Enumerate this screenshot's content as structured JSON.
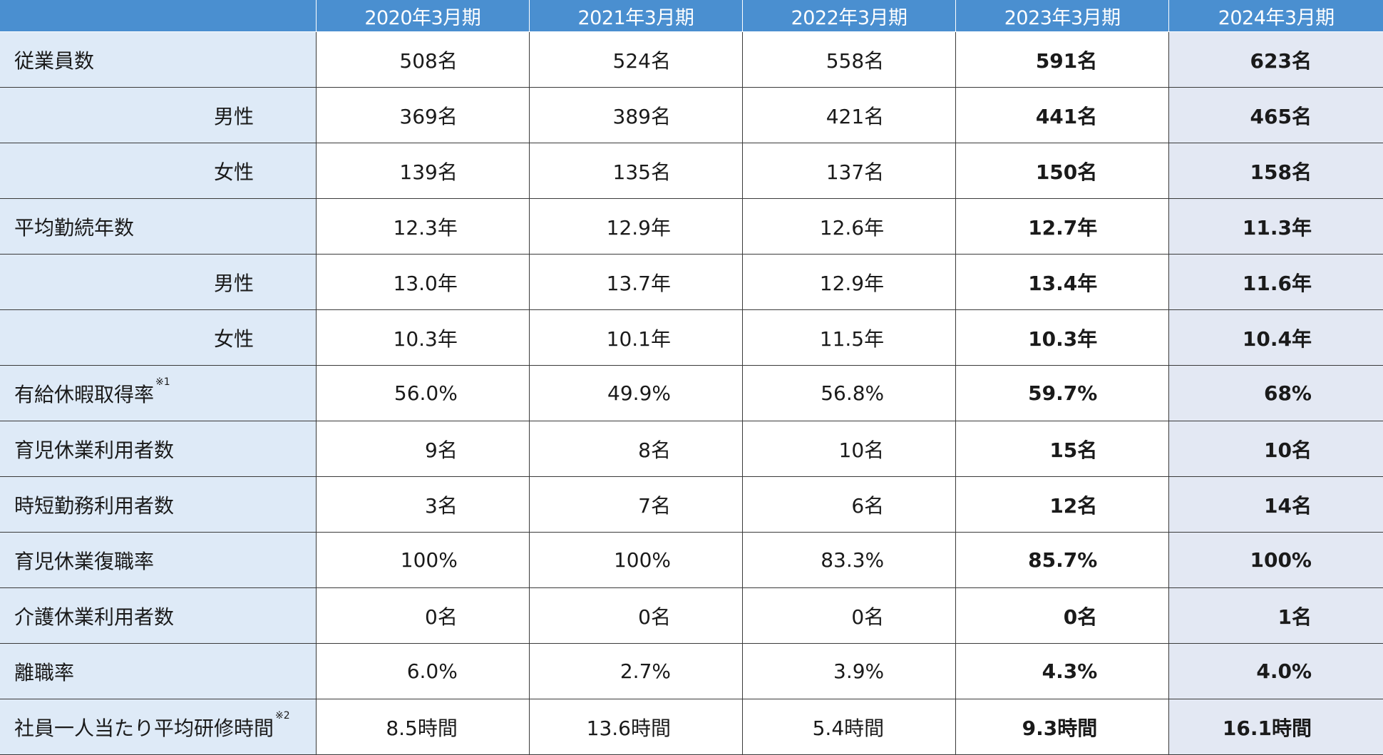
{
  "table": {
    "headers": [
      "",
      "2020年3月期",
      "2021年3月期",
      "2022年3月期",
      "2023年3月期",
      "2024年3月期"
    ],
    "rows": [
      {
        "label": "従業員数",
        "note": "",
        "indent": false,
        "values": [
          "508名",
          "524名",
          "558名",
          "591名",
          "623名"
        ]
      },
      {
        "label": "男性",
        "note": "",
        "indent": true,
        "values": [
          "369名",
          "389名",
          "421名",
          "441名",
          "465名"
        ]
      },
      {
        "label": "女性",
        "note": "",
        "indent": true,
        "values": [
          "139名",
          "135名",
          "137名",
          "150名",
          "158名"
        ]
      },
      {
        "label": "平均勤続年数",
        "note": "",
        "indent": false,
        "values": [
          "12.3年",
          "12.9年",
          "12.6年",
          "12.7年",
          "11.3年"
        ]
      },
      {
        "label": "男性",
        "note": "",
        "indent": true,
        "values": [
          "13.0年",
          "13.7年",
          "12.9年",
          "13.4年",
          "11.6年"
        ]
      },
      {
        "label": "女性",
        "note": "",
        "indent": true,
        "values": [
          "10.3年",
          "10.1年",
          "11.5年",
          "10.3年",
          "10.4年"
        ]
      },
      {
        "label": "有給休暇取得率",
        "note": "※1",
        "indent": false,
        "values": [
          "56.0%",
          "49.9%",
          "56.8%",
          "59.7%",
          "68%"
        ]
      },
      {
        "label": "育児休業利用者数",
        "note": "",
        "indent": false,
        "values": [
          "9名",
          "8名",
          "10名",
          "15名",
          "10名"
        ]
      },
      {
        "label": "時短勤務利用者数",
        "note": "",
        "indent": false,
        "values": [
          "3名",
          "7名",
          "6名",
          "12名",
          "14名"
        ]
      },
      {
        "label": "育児休業復職率",
        "note": "",
        "indent": false,
        "values": [
          "100%",
          "100%",
          "83.3%",
          "85.7%",
          "100%"
        ]
      },
      {
        "label": "介護休業利用者数",
        "note": "",
        "indent": false,
        "values": [
          "0名",
          "0名",
          "0名",
          "0名",
          "1名"
        ]
      },
      {
        "label": "離職率",
        "note": "",
        "indent": false,
        "values": [
          "6.0%",
          "2.7%",
          "3.9%",
          "4.3%",
          "4.0%"
        ]
      },
      {
        "label": "社員一人当たり平均研修時間",
        "note": "※2",
        "indent": false,
        "values": [
          "8.5時間",
          "13.6時間",
          "5.4時間",
          "9.3時間",
          "16.1時間"
        ]
      }
    ]
  },
  "colors": {
    "header_bg": "#4a8fd0",
    "label_bg": "#deeaf7",
    "latest_col_bg": "#e3e8f3"
  }
}
